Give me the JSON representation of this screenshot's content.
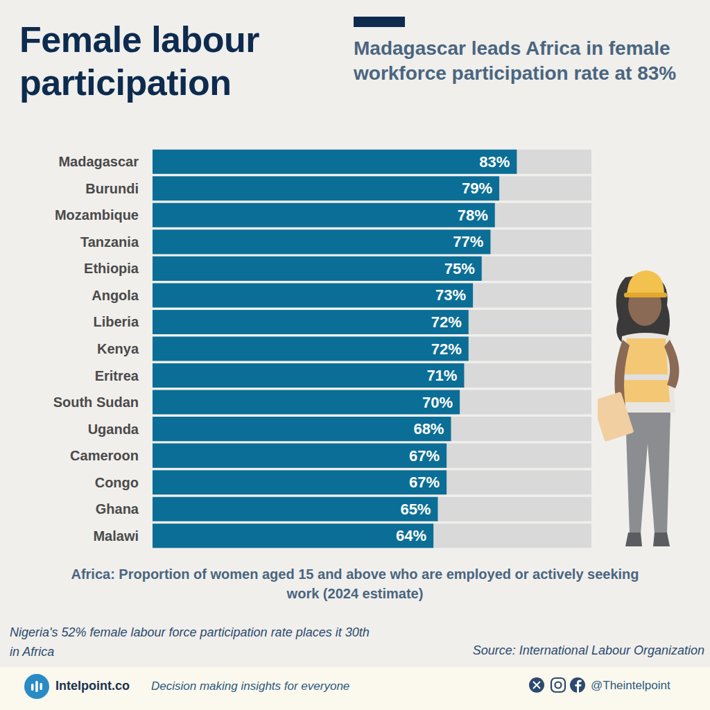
{
  "chart_data": {
    "type": "bar",
    "orientation": "horizontal",
    "title": "Female labour participation",
    "subtitle": "Madagascar leads Africa in female workforce participation rate at 83%",
    "categories": [
      "Madagascar",
      "Burundi",
      "Mozambique",
      "Tanzania",
      "Ethiopia",
      "Angola",
      "Liberia",
      "Kenya",
      "Eritrea",
      "South Sudan",
      "Uganda",
      "Cameroon",
      "Congo",
      "Ghana",
      "Malawi"
    ],
    "values": [
      83,
      79,
      78,
      77,
      75,
      73,
      72,
      72,
      71,
      70,
      68,
      67,
      67,
      65,
      64
    ],
    "value_labels": [
      "83%",
      "79%",
      "78%",
      "77%",
      "75%",
      "73%",
      "72%",
      "72%",
      "71%",
      "70%",
      "68%",
      "67%",
      "67%",
      "65%",
      "64%"
    ],
    "color": "#0b6e96",
    "xlim": [
      0,
      100
    ],
    "grid": false,
    "data_labels": true,
    "tick_labels": "y",
    "caption": "Africa: Proportion of women aged 15 and above who are employed or actively seeking work (2024 estimate)",
    "note": "Nigeria's 52% female labour force participation rate places it 30th in Africa",
    "source": "Source: International Labour Organization",
    "brand": "Intelpoint.co",
    "tagline": "Decision making insights for everyone",
    "handle": "@Theintelpoint"
  }
}
